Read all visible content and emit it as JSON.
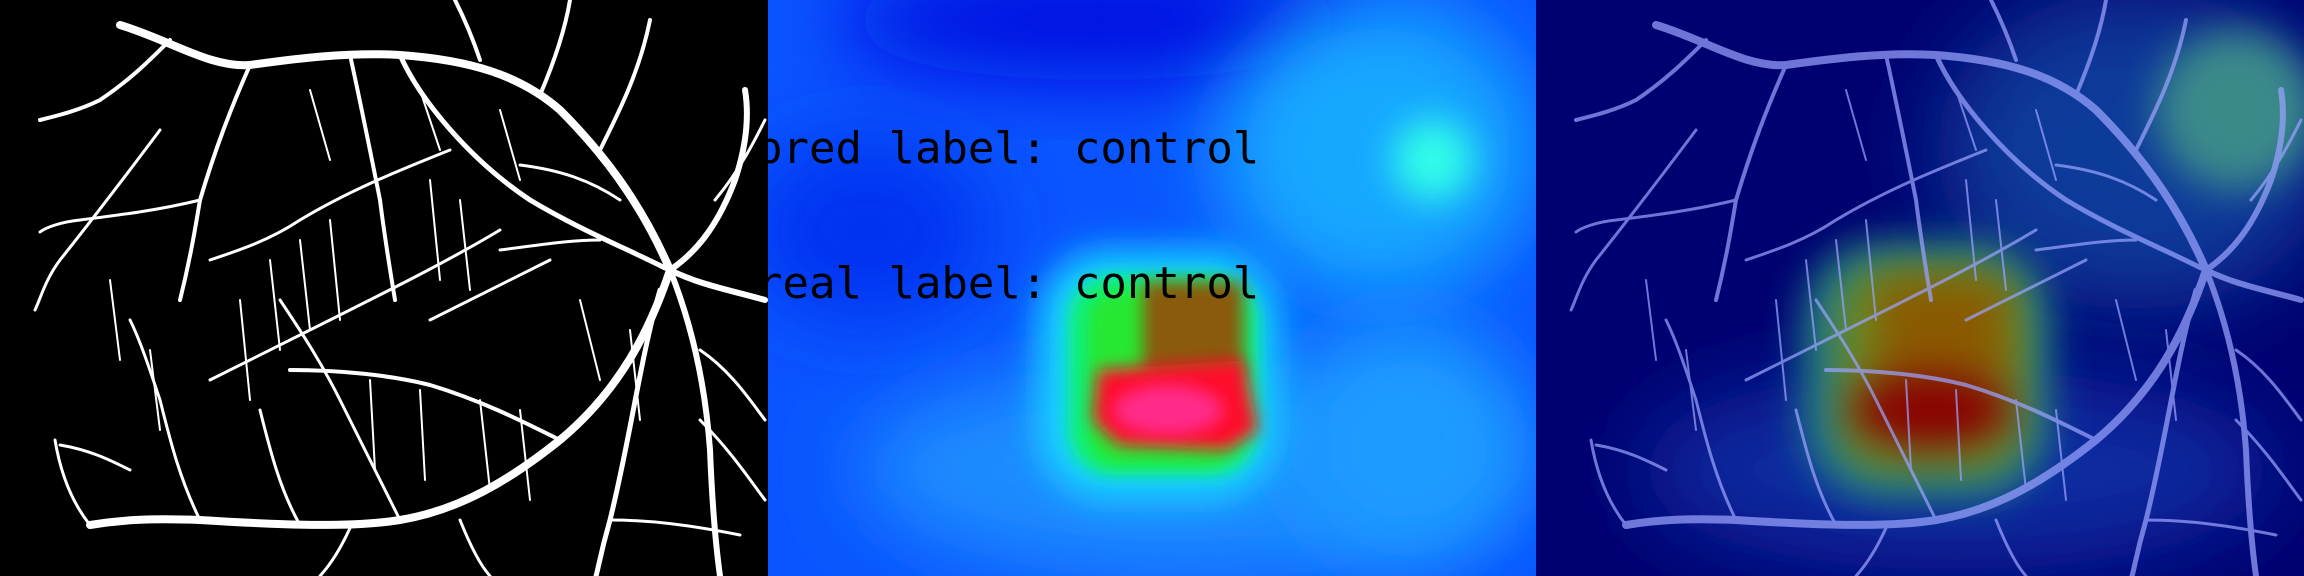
{
  "panels": {
    "vessel_mask": {
      "title": ""
    },
    "heatmap": {
      "pred_label": "pred label: control",
      "real_label": "real label: control"
    },
    "overlay": {
      "title": ""
    }
  },
  "colors": {
    "vessel": "#ffffff",
    "vessel_overlay": "#9aa3ff",
    "heat_low": "#0000ff",
    "heat_mid": "#00ff60",
    "heat_high": "#ff1060",
    "background": "#000000"
  },
  "icons": {
    "panel1": "retina-vessel-mask",
    "panel2": "attention-heatmap",
    "panel3": "heatmap-overlay"
  }
}
